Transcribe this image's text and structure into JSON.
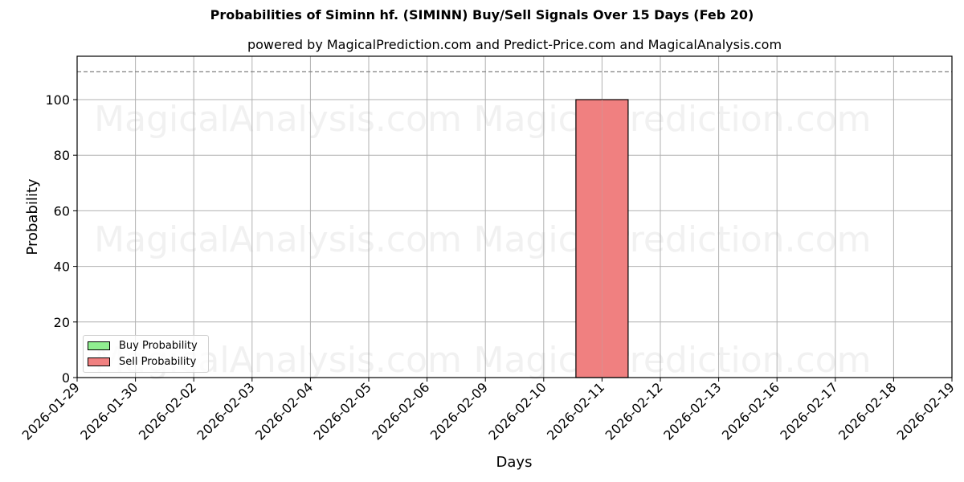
{
  "header": {
    "title": "Probabilities of Siminn hf. (SIMINN) Buy/Sell Signals Over 15 Days (Feb 20)",
    "subtitle": "powered by MagicalPrediction.com and Predict-Price.com and MagicalAnalysis.com"
  },
  "axes": {
    "xlabel": "Days",
    "ylabel": "Probability",
    "yticks": [
      "0",
      "20",
      "40",
      "60",
      "80",
      "100"
    ]
  },
  "legend": {
    "buy_label": "Buy Probability",
    "sell_label": "Sell Probability"
  },
  "watermarks": [
    "MagicalAnalysis.com",
    "MagicalPrediction.com"
  ],
  "colors": {
    "buy": "#90ee90",
    "sell": "#f08080",
    "threshold_line": "#808080"
  },
  "chart_data": {
    "type": "bar",
    "title": "Probabilities of Siminn hf. (SIMINN) Buy/Sell Signals Over 15 Days (Feb 20)",
    "subtitle": "powered by MagicalPrediction.com and Predict-Price.com and MagicalAnalysis.com",
    "xlabel": "Days",
    "ylabel": "Probability",
    "categories": [
      "2026-01-29",
      "2026-01-30",
      "2026-02-02",
      "2026-02-03",
      "2026-02-04",
      "2026-02-05",
      "2026-02-06",
      "2026-02-09",
      "2026-02-10",
      "2026-02-11",
      "2026-02-12",
      "2026-02-13",
      "2026-02-16",
      "2026-02-17",
      "2026-02-18",
      "2026-02-19"
    ],
    "series": [
      {
        "name": "Buy Probability",
        "color": "#90ee90",
        "values": [
          0,
          0,
          0,
          0,
          0,
          0,
          0,
          0,
          0,
          0,
          0,
          0,
          0,
          0,
          0,
          0
        ]
      },
      {
        "name": "Sell Probability",
        "color": "#f08080",
        "values": [
          0,
          0,
          0,
          0,
          0,
          0,
          0,
          0,
          0,
          100,
          0,
          0,
          0,
          0,
          0,
          0
        ]
      }
    ],
    "ylim": [
      0,
      115
    ],
    "yticks": [
      0,
      20,
      40,
      60,
      80,
      100
    ],
    "reference_line": {
      "y": 110,
      "style": "dashed",
      "color": "#808080"
    },
    "grid": true,
    "legend_position": "lower left"
  }
}
